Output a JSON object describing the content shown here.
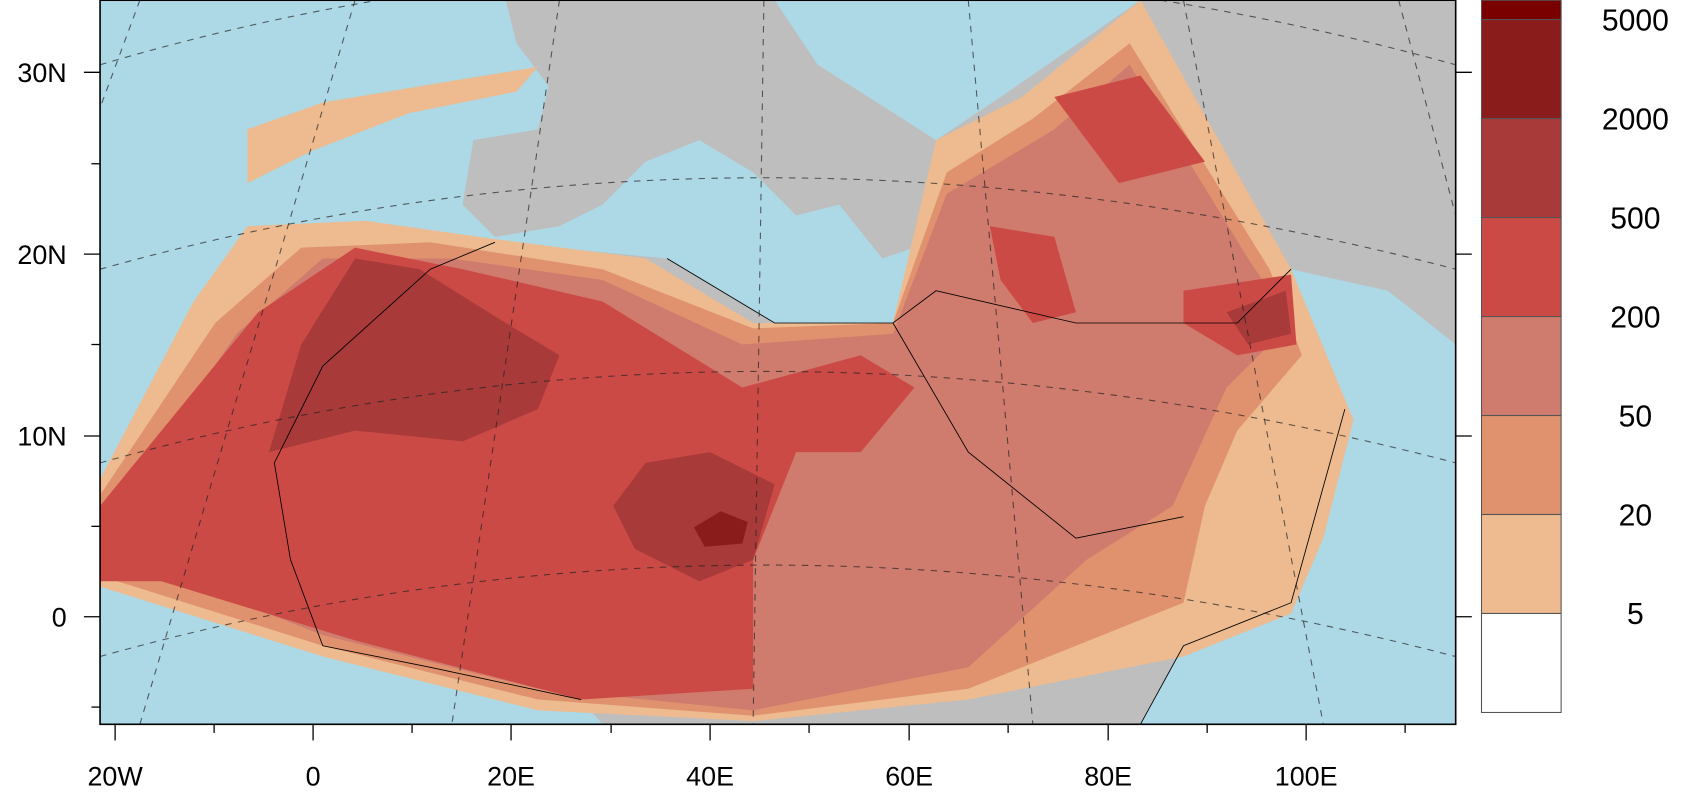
{
  "map": {
    "y_axis_labels": [
      "30N",
      "20N",
      "10N",
      "0"
    ],
    "x_axis_labels": [
      "20W",
      "0",
      "20E",
      "40E",
      "60E",
      "80E",
      "100E"
    ],
    "colorbar_labels": [
      "5000",
      "2000",
      "500",
      "200",
      "50",
      "20",
      "5"
    ]
  }
}
